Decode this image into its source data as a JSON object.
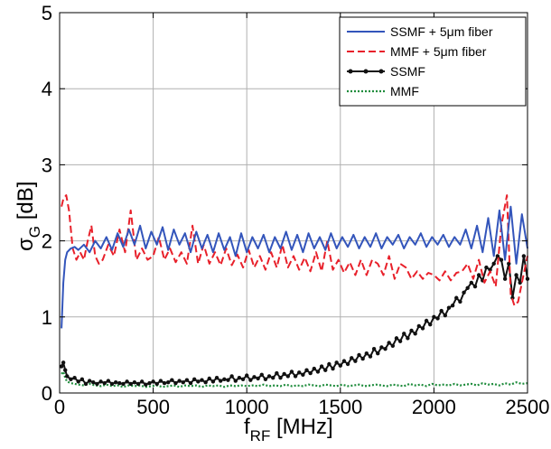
{
  "chart_data": {
    "type": "line",
    "xlabel": {
      "main": "f",
      "sub": "RF",
      "rest": " [MHz]"
    },
    "ylabel": {
      "main": "σ",
      "sub": "G",
      "rest": " [dB]"
    },
    "xlim": [
      0,
      2500
    ],
    "ylim": [
      0,
      5
    ],
    "xticks": [
      0,
      500,
      1000,
      1500,
      2000,
      2500
    ],
    "yticks": [
      0,
      1,
      2,
      3,
      4,
      5
    ],
    "xtick_labels": [
      "0",
      "500",
      "1000",
      "1500",
      "2000",
      "2500"
    ],
    "ytick_labels": [
      "0",
      "1",
      "2",
      "3",
      "4",
      "5"
    ],
    "grid": true,
    "legend_position": "top-right",
    "series": [
      {
        "name": "SSMF + 5μm fiber",
        "color": "#3355bb",
        "style": "solid",
        "marker": "none",
        "x": [
          10,
          20,
          30,
          40,
          60,
          80,
          100,
          130,
          160,
          190,
          220,
          250,
          280,
          310,
          340,
          370,
          400,
          430,
          460,
          490,
          520,
          550,
          580,
          610,
          640,
          670,
          700,
          730,
          760,
          790,
          820,
          850,
          880,
          910,
          940,
          970,
          1000,
          1030,
          1060,
          1090,
          1120,
          1150,
          1180,
          1210,
          1240,
          1270,
          1300,
          1330,
          1360,
          1390,
          1420,
          1450,
          1480,
          1510,
          1540,
          1570,
          1600,
          1630,
          1660,
          1690,
          1720,
          1750,
          1780,
          1810,
          1840,
          1870,
          1900,
          1930,
          1960,
          1990,
          2020,
          2050,
          2080,
          2110,
          2140,
          2170,
          2200,
          2230,
          2260,
          2290,
          2320,
          2350,
          2380,
          2410,
          2440,
          2470,
          2500
        ],
        "y": [
          0.85,
          1.45,
          1.75,
          1.85,
          1.9,
          1.92,
          1.88,
          1.95,
          1.85,
          2.0,
          1.9,
          2.05,
          1.88,
          2.1,
          1.92,
          2.15,
          1.95,
          2.2,
          1.9,
          2.12,
          1.95,
          2.18,
          1.88,
          2.15,
          1.95,
          2.1,
          1.85,
          2.12,
          1.9,
          2.08,
          1.85,
          2.1,
          1.88,
          2.05,
          1.8,
          2.1,
          1.85,
          2.05,
          1.9,
          2.08,
          1.85,
          2.05,
          1.9,
          2.12,
          1.88,
          2.08,
          1.85,
          2.1,
          1.9,
          2.05,
          1.88,
          2.1,
          1.9,
          2.05,
          1.92,
          2.08,
          1.9,
          2.05,
          1.92,
          2.1,
          1.9,
          2.05,
          1.95,
          2.08,
          1.9,
          2.05,
          1.95,
          2.1,
          1.92,
          2.05,
          1.95,
          2.08,
          1.92,
          2.05,
          1.95,
          2.15,
          1.9,
          2.2,
          1.85,
          2.3,
          1.8,
          2.4,
          1.75,
          2.45,
          1.7,
          2.35,
          1.9
        ]
      },
      {
        "name": "MMF + 5μm fiber",
        "color": "#e8202a",
        "style": "dashed",
        "marker": "none",
        "x": [
          10,
          20,
          35,
          50,
          70,
          90,
          110,
          130,
          150,
          170,
          190,
          210,
          230,
          260,
          290,
          320,
          350,
          380,
          410,
          440,
          470,
          500,
          530,
          560,
          590,
          620,
          650,
          680,
          710,
          740,
          770,
          800,
          830,
          860,
          890,
          920,
          950,
          980,
          1010,
          1040,
          1070,
          1100,
          1130,
          1160,
          1190,
          1220,
          1250,
          1280,
          1310,
          1340,
          1370,
          1400,
          1430,
          1460,
          1490,
          1520,
          1550,
          1580,
          1610,
          1640,
          1670,
          1700,
          1730,
          1760,
          1790,
          1820,
          1850,
          1880,
          1910,
          1940,
          1970,
          2000,
          2030,
          2060,
          2090,
          2120,
          2150,
          2180,
          2210,
          2240,
          2270,
          2300,
          2330,
          2360,
          2390,
          2410,
          2430,
          2450,
          2470,
          2500
        ],
        "y": [
          2.45,
          2.55,
          2.6,
          2.4,
          1.9,
          1.75,
          1.85,
          1.75,
          2.0,
          2.2,
          1.8,
          1.7,
          1.75,
          1.95,
          1.8,
          2.15,
          1.85,
          2.4,
          1.75,
          1.9,
          1.75,
          1.8,
          2.05,
          1.75,
          1.9,
          1.72,
          1.85,
          1.7,
          2.2,
          1.7,
          1.95,
          1.7,
          1.85,
          1.68,
          1.9,
          1.68,
          1.82,
          1.65,
          1.88,
          1.65,
          1.8,
          1.62,
          1.85,
          1.65,
          1.95,
          1.65,
          1.8,
          1.62,
          1.78,
          1.6,
          1.85,
          1.6,
          2.0,
          1.62,
          1.75,
          1.58,
          1.72,
          1.55,
          1.75,
          1.55,
          1.75,
          1.7,
          1.55,
          1.8,
          1.5,
          1.7,
          1.65,
          1.5,
          1.6,
          1.5,
          1.58,
          1.55,
          1.48,
          1.6,
          1.48,
          1.58,
          1.6,
          1.7,
          1.5,
          1.75,
          1.45,
          1.6,
          1.4,
          2.2,
          2.6,
          1.3,
          1.15,
          1.2,
          1.45,
          1.8
        ]
      },
      {
        "name": "SSMF",
        "color": "#111111",
        "style": "solid",
        "marker": "dot",
        "x": [
          10,
          20,
          30,
          40,
          60,
          80,
          100,
          120,
          140,
          160,
          180,
          200,
          220,
          240,
          260,
          280,
          300,
          320,
          340,
          360,
          380,
          400,
          420,
          440,
          460,
          480,
          500,
          520,
          540,
          560,
          580,
          600,
          620,
          640,
          660,
          680,
          700,
          720,
          740,
          760,
          780,
          800,
          820,
          840,
          860,
          880,
          900,
          920,
          940,
          960,
          980,
          1000,
          1020,
          1040,
          1060,
          1080,
          1100,
          1120,
          1140,
          1160,
          1180,
          1200,
          1220,
          1240,
          1260,
          1280,
          1300,
          1320,
          1340,
          1360,
          1380,
          1400,
          1420,
          1440,
          1460,
          1480,
          1500,
          1520,
          1540,
          1560,
          1580,
          1600,
          1620,
          1640,
          1660,
          1680,
          1700,
          1720,
          1740,
          1760,
          1780,
          1800,
          1820,
          1840,
          1860,
          1880,
          1900,
          1920,
          1940,
          1960,
          1980,
          2000,
          2020,
          2040,
          2060,
          2080,
          2100,
          2120,
          2140,
          2160,
          2180,
          2200,
          2220,
          2240,
          2260,
          2280,
          2300,
          2320,
          2340,
          2360,
          2380,
          2400,
          2420,
          2440,
          2460,
          2480,
          2500
        ],
        "y": [
          0.35,
          0.4,
          0.3,
          0.22,
          0.18,
          0.2,
          0.15,
          0.18,
          0.12,
          0.16,
          0.14,
          0.12,
          0.15,
          0.13,
          0.16,
          0.12,
          0.14,
          0.13,
          0.12,
          0.15,
          0.12,
          0.14,
          0.12,
          0.15,
          0.11,
          0.13,
          0.15,
          0.12,
          0.16,
          0.13,
          0.14,
          0.17,
          0.13,
          0.16,
          0.14,
          0.17,
          0.13,
          0.18,
          0.15,
          0.17,
          0.14,
          0.19,
          0.15,
          0.2,
          0.16,
          0.18,
          0.17,
          0.22,
          0.16,
          0.2,
          0.18,
          0.23,
          0.17,
          0.21,
          0.19,
          0.24,
          0.18,
          0.22,
          0.2,
          0.26,
          0.2,
          0.25,
          0.22,
          0.28,
          0.22,
          0.27,
          0.24,
          0.3,
          0.26,
          0.32,
          0.28,
          0.35,
          0.3,
          0.38,
          0.32,
          0.4,
          0.36,
          0.42,
          0.38,
          0.46,
          0.42,
          0.5,
          0.45,
          0.52,
          0.48,
          0.58,
          0.52,
          0.6,
          0.58,
          0.66,
          0.62,
          0.72,
          0.68,
          0.78,
          0.72,
          0.82,
          0.78,
          0.88,
          0.85,
          0.95,
          0.9,
          1.0,
          0.98,
          1.08,
          1.02,
          1.12,
          1.15,
          1.25,
          1.2,
          1.32,
          1.38,
          1.45,
          1.4,
          1.55,
          1.48,
          1.65,
          1.62,
          1.7,
          1.8,
          1.75,
          1.5,
          1.7,
          1.25,
          1.55,
          1.45,
          1.8,
          1.5
        ]
      },
      {
        "name": "MMF",
        "color": "#1e8c3c",
        "style": "dotted",
        "marker": "none",
        "x": [
          10,
          20,
          30,
          40,
          60,
          80,
          100,
          130,
          160,
          190,
          220,
          250,
          280,
          310,
          340,
          370,
          400,
          430,
          460,
          490,
          520,
          550,
          580,
          610,
          640,
          670,
          700,
          730,
          760,
          790,
          820,
          850,
          880,
          910,
          940,
          970,
          1000,
          1030,
          1060,
          1090,
          1120,
          1150,
          1180,
          1210,
          1240,
          1270,
          1300,
          1330,
          1360,
          1390,
          1420,
          1450,
          1480,
          1510,
          1540,
          1570,
          1600,
          1630,
          1660,
          1690,
          1720,
          1750,
          1780,
          1810,
          1840,
          1870,
          1900,
          1930,
          1960,
          1990,
          2020,
          2050,
          2080,
          2110,
          2140,
          2170,
          2200,
          2230,
          2260,
          2290,
          2320,
          2350,
          2380,
          2410,
          2440,
          2470,
          2500
        ],
        "y": [
          0.25,
          0.28,
          0.2,
          0.15,
          0.13,
          0.12,
          0.11,
          0.1,
          0.12,
          0.1,
          0.09,
          0.11,
          0.09,
          0.1,
          0.08,
          0.1,
          0.09,
          0.1,
          0.08,
          0.09,
          0.1,
          0.08,
          0.09,
          0.1,
          0.08,
          0.1,
          0.09,
          0.1,
          0.08,
          0.1,
          0.09,
          0.1,
          0.08,
          0.1,
          0.09,
          0.1,
          0.09,
          0.1,
          0.09,
          0.11,
          0.09,
          0.1,
          0.09,
          0.11,
          0.09,
          0.1,
          0.09,
          0.11,
          0.1,
          0.09,
          0.11,
          0.1,
          0.09,
          0.11,
          0.09,
          0.1,
          0.11,
          0.09,
          0.1,
          0.11,
          0.1,
          0.09,
          0.11,
          0.1,
          0.09,
          0.12,
          0.1,
          0.11,
          0.09,
          0.12,
          0.1,
          0.11,
          0.1,
          0.12,
          0.1,
          0.11,
          0.12,
          0.1,
          0.13,
          0.11,
          0.12,
          0.1,
          0.13,
          0.11,
          0.14,
          0.12,
          0.13
        ]
      }
    ]
  }
}
